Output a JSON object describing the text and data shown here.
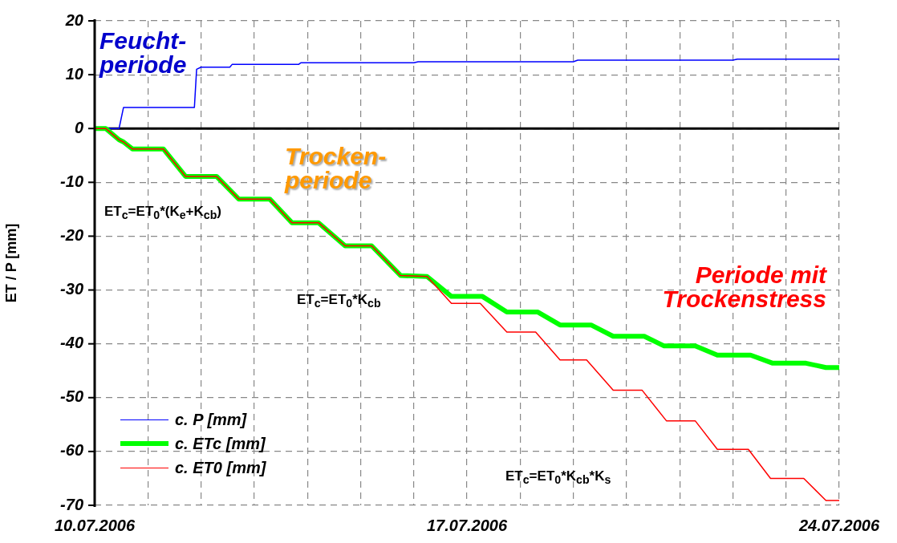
{
  "chart_data": {
    "type": "line",
    "ylabel": "ET / P [mm]",
    "xlim": [
      "2006-07-10",
      "2006-07-24"
    ],
    "xticks": [
      {
        "value": "2006-07-10",
        "label": "10.07.2006"
      },
      {
        "value": "2006-07-11",
        "label": null
      },
      {
        "value": "2006-07-12",
        "label": null
      },
      {
        "value": "2006-07-13",
        "label": null
      },
      {
        "value": "2006-07-14",
        "label": null
      },
      {
        "value": "2006-07-15",
        "label": null
      },
      {
        "value": "2006-07-16",
        "label": null
      },
      {
        "value": "2006-07-17",
        "label": "17.07.2006"
      },
      {
        "value": "2006-07-18",
        "label": null
      },
      {
        "value": "2006-07-19",
        "label": null
      },
      {
        "value": "2006-07-20",
        "label": null
      },
      {
        "value": "2006-07-21",
        "label": null
      },
      {
        "value": "2006-07-22",
        "label": null
      },
      {
        "value": "2006-07-23",
        "label": null
      },
      {
        "value": "2006-07-24",
        "label": "24.07.2006"
      }
    ],
    "ylim": [
      -70,
      20
    ],
    "yticks": [
      -70,
      -60,
      -50,
      -40,
      -30,
      -20,
      -10,
      0,
      10,
      20
    ],
    "grid": true,
    "legend": "bottom left",
    "marker": "none",
    "line_style": "solid",
    "ref_lines": [
      {
        "axis": "y",
        "value": 0,
        "color": "#000000"
      }
    ],
    "series": [
      {
        "name": "c. P [mm]",
        "color": "#0000ff",
        "x": [
          "2006-07-10T00:00",
          "2006-07-10T11:00",
          "2006-07-10T13:00",
          "2006-07-11T21:00",
          "2006-07-11T22:00",
          "2006-07-12T00:00",
          "2006-07-12T13:00",
          "2006-07-12T14:00",
          "2006-07-13T20:00",
          "2006-07-13T21:00",
          "2006-07-16T00:00",
          "2006-07-16T02:00",
          "2006-07-19T00:00",
          "2006-07-19T02:00",
          "2006-07-22T00:00",
          "2006-07-22T02:00",
          "2006-07-24T00:00"
        ],
        "values": [
          0,
          0,
          3.9,
          3.9,
          11,
          11.4,
          11.4,
          11.9,
          11.9,
          12.2,
          12.2,
          12.4,
          12.4,
          12.7,
          12.7,
          12.9,
          12.9
        ]
      },
      {
        "name": "c. ETc [mm]",
        "color": "#00ff00",
        "x": [
          "2006-07-10T00:00",
          "2006-07-10T05:00",
          "2006-07-10T11:00",
          "2006-07-10T13:00",
          "2006-07-10T17:00",
          "2006-07-11T07:00",
          "2006-07-11T17:00",
          "2006-07-12T07:00",
          "2006-07-12T17:00",
          "2006-07-13T07:00",
          "2006-07-13T17:00",
          "2006-07-14T05:00",
          "2006-07-14T17:00",
          "2006-07-15T05:00",
          "2006-07-15T18:00",
          "2006-07-16T06:00",
          "2006-07-16T17:00",
          "2006-07-17T07:00",
          "2006-07-17T18:00",
          "2006-07-18T08:00",
          "2006-07-18T18:00",
          "2006-07-19T08:00",
          "2006-07-19T18:00",
          "2006-07-20T08:00",
          "2006-07-20T17:00",
          "2006-07-21T07:00",
          "2006-07-21T17:00",
          "2006-07-22T08:00",
          "2006-07-22T18:00",
          "2006-07-23T09:00",
          "2006-07-23T18:00",
          "2006-07-24T00:00"
        ],
        "values": [
          0,
          0,
          -2.1,
          -2.5,
          -3.8,
          -3.8,
          -8.9,
          -8.9,
          -13.1,
          -13.1,
          -17.5,
          -17.5,
          -21.8,
          -21.8,
          -27.3,
          -27.5,
          -31.2,
          -31.2,
          -34.1,
          -34.1,
          -36.5,
          -36.5,
          -38.6,
          -38.6,
          -40.4,
          -40.4,
          -42.1,
          -42.1,
          -43.6,
          -43.6,
          -44.4,
          -44.4
        ]
      },
      {
        "name": "c. ET0 [mm]",
        "color": "#ff0000",
        "x": [
          "2006-07-10T00:00",
          "2006-07-10T05:00",
          "2006-07-10T11:00",
          "2006-07-10T13:00",
          "2006-07-10T17:00",
          "2006-07-11T07:00",
          "2006-07-11T17:00",
          "2006-07-12T07:00",
          "2006-07-12T17:00",
          "2006-07-13T07:00",
          "2006-07-13T17:00",
          "2006-07-14T05:00",
          "2006-07-14T17:00",
          "2006-07-15T05:00",
          "2006-07-15T18:00",
          "2006-07-16T06:00",
          "2006-07-16T17:00",
          "2006-07-17T06:00",
          "2006-07-17T18:00",
          "2006-07-18T07:00",
          "2006-07-18T18:00",
          "2006-07-19T06:00",
          "2006-07-19T18:00",
          "2006-07-20T07:00",
          "2006-07-20T18:00",
          "2006-07-21T07:00",
          "2006-07-21T17:00",
          "2006-07-22T07:00",
          "2006-07-22T17:00",
          "2006-07-23T08:00",
          "2006-07-23T18:00",
          "2006-07-24T00:00"
        ],
        "values": [
          0,
          0,
          -2.1,
          -2.5,
          -3.8,
          -3.8,
          -8.9,
          -8.9,
          -13.1,
          -13.1,
          -17.5,
          -17.5,
          -21.8,
          -21.8,
          -27.3,
          -27.5,
          -32.5,
          -32.5,
          -37.8,
          -37.8,
          -43,
          -43,
          -48.6,
          -48.6,
          -54.3,
          -54.3,
          -59.6,
          -59.6,
          -65,
          -65,
          -69.1,
          -69.1
        ]
      }
    ],
    "annotations": [
      "Feucht-\nperiode",
      "Trocken-\nperiode",
      "Periode mit\nTrockenstress",
      "ET$_{c}$=ET$_{0}$*(K$_{e}$+K$_{cb}$)",
      "ET$_{c}$=ET$_{0}$*K$_{cb}$",
      "ET$_{c}$=ET$_{0}$*K$_{cb}$*K$_{s}$"
    ]
  }
}
